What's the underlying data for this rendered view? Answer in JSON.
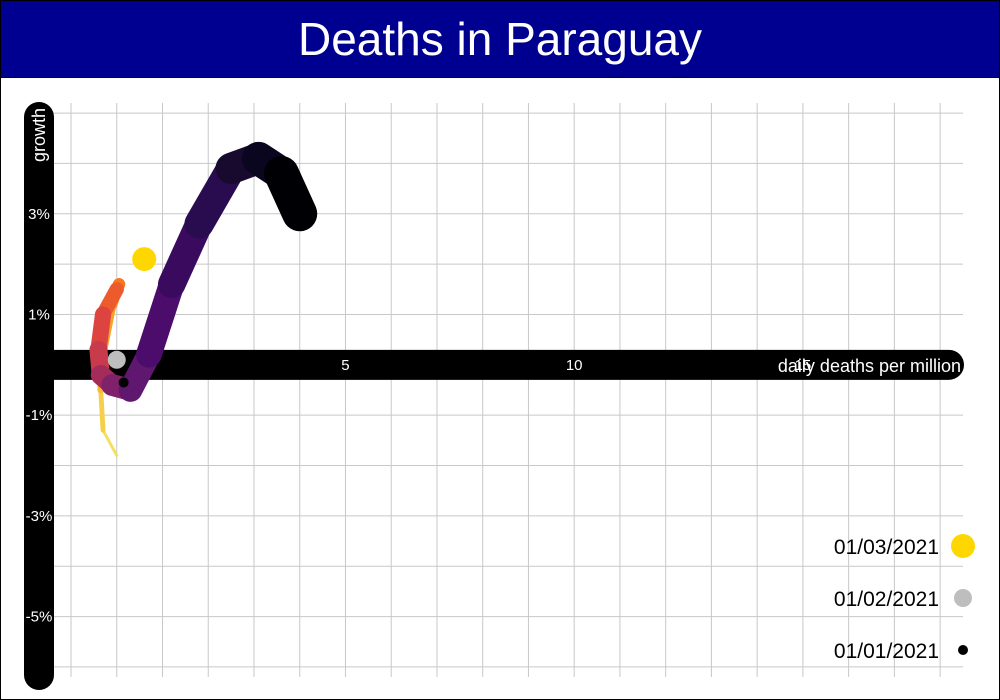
{
  "title": "Deaths in Paraguay",
  "chart_data": {
    "type": "line",
    "title": "Deaths in Paraguay",
    "xlabel": "daily deaths per million",
    "ylabel": "growth",
    "x_ticks": [
      5,
      10,
      15
    ],
    "y_ticks": [
      3,
      1,
      -1,
      -3,
      -5
    ],
    "y_tick_labels": [
      "3%",
      "1%",
      "-1%",
      "-3%",
      "-5%"
    ],
    "xlim": [
      -1.7,
      18.5
    ],
    "ylim": [
      -6.2,
      5.2
    ],
    "grid": true,
    "legend_position": "bottom-right",
    "series": [
      {
        "x": [
          0.0,
          -0.3,
          -0.35,
          -0.3,
          -0.1,
          0.05,
          0.0,
          -0.3,
          -0.4,
          -0.35,
          -0.1,
          0.3,
          0.7,
          1.2,
          1.8,
          2.5,
          3.1,
          3.6,
          4.0
        ],
        "y": [
          -1.8,
          -1.3,
          -0.5,
          0.3,
          1.2,
          1.6,
          1.5,
          1.0,
          0.3,
          -0.2,
          -0.4,
          -0.5,
          0.2,
          1.6,
          2.8,
          3.9,
          4.1,
          3.8,
          3.0
        ],
        "colors": [
          "#f5e85a",
          "#f4e060",
          "#f6cf4a",
          "#f8b93d",
          "#f9a22a",
          "#fb8f1a",
          "#f7791f",
          "#ed5a2c",
          "#dd4440",
          "#c73b4c",
          "#a32c5b",
          "#80216b",
          "#60176f",
          "#4b0c6b",
          "#3a0a5e",
          "#290b4f",
          "#18092f",
          "#0b0620",
          "#000004"
        ]
      }
    ],
    "highlights": [
      {
        "label": "01/03/2021",
        "x": 0.6,
        "y": 2.1,
        "color": "#ffd700"
      },
      {
        "label": "01/02/2021",
        "x": 0.0,
        "y": 0.1,
        "color": "#bebebe"
      },
      {
        "label": "01/01/2021",
        "x": 0.15,
        "y": -0.35,
        "color": "#000000"
      }
    ]
  }
}
